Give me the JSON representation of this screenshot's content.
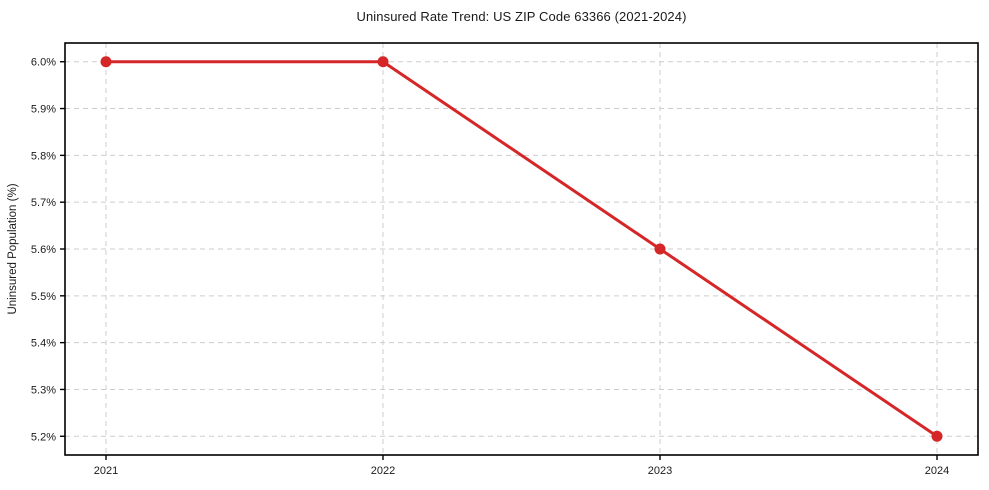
{
  "chart_data": {
    "type": "line",
    "title": "Uninsured Rate Trend: US ZIP Code 63366 (2021-2024)",
    "xlabel": "",
    "ylabel": "Uninsured Population (%)",
    "x": [
      "2021",
      "2022",
      "2023",
      "2024"
    ],
    "series": [
      {
        "name": "Uninsured Population (%)",
        "values": [
          6.0,
          6.0,
          5.6,
          5.2
        ],
        "color": "#d62728",
        "marker": "circle",
        "line_width": 3,
        "marker_radius": 5.5
      }
    ],
    "y_ticks": [
      5.2,
      5.3,
      5.4,
      5.5,
      5.6,
      5.7,
      5.8,
      5.9,
      6.0
    ],
    "y_tick_labels": [
      "5.2%",
      "5.3%",
      "5.4%",
      "5.5%",
      "5.6%",
      "5.7%",
      "5.8%",
      "5.9%",
      "6.0%"
    ],
    "ylim": [
      5.16,
      6.04
    ],
    "grid": "dashed",
    "grid_color": "#cdcdcd",
    "axis_color": "#000000",
    "tick_color": "#000000",
    "legend_position": "none"
  }
}
